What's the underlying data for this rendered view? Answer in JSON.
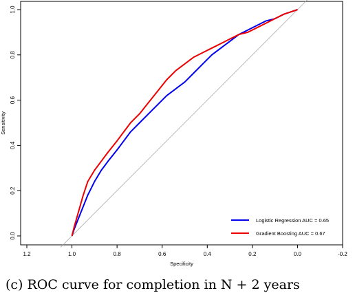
{
  "caption": "(c) ROC curve for completion in N + 2 years",
  "chart_data": {
    "type": "line",
    "title": "",
    "xlabel": "Specificity",
    "ylabel": "Sensitivity",
    "x_reversed": true,
    "xlim": [
      1.2,
      -0.2
    ],
    "ylim": [
      0.0,
      1.0
    ],
    "x_ticks": [
      1.2,
      1.0,
      0.8,
      0.6,
      0.4,
      0.2,
      0.0,
      -0.2
    ],
    "x_tick_labels": [
      "1.2",
      "1.0",
      "0.8",
      "0.6",
      "0.4",
      "0.2",
      "0.0",
      "-0.2"
    ],
    "y_ticks": [
      0.0,
      0.2,
      0.4,
      0.6,
      0.8,
      1.0
    ],
    "y_tick_labels": [
      "0.0",
      "0.2",
      "0.4",
      "0.6",
      "0.8",
      "1.0"
    ],
    "grid": false,
    "legend_position": "bottom-right",
    "reference_line": {
      "x": [
        1.0,
        0.0
      ],
      "y": [
        0.0,
        1.0
      ],
      "color": "#aaaaaa"
    },
    "series": [
      {
        "name": "Logistic Regression AUC = 0.65",
        "color": "#0000ee",
        "x": [
          1.0,
          0.99,
          0.97,
          0.95,
          0.93,
          0.9,
          0.87,
          0.84,
          0.8,
          0.77,
          0.74,
          0.7,
          0.66,
          0.62,
          0.58,
          0.54,
          0.5,
          0.46,
          0.42,
          0.38,
          0.34,
          0.3,
          0.26,
          0.22,
          0.18,
          0.14,
          0.1,
          0.06,
          0.03,
          0.0
        ],
        "y": [
          0.0,
          0.03,
          0.08,
          0.13,
          0.18,
          0.24,
          0.29,
          0.33,
          0.38,
          0.42,
          0.46,
          0.5,
          0.54,
          0.58,
          0.62,
          0.65,
          0.68,
          0.72,
          0.76,
          0.8,
          0.83,
          0.86,
          0.89,
          0.91,
          0.93,
          0.95,
          0.96,
          0.98,
          0.99,
          1.0
        ]
      },
      {
        "name": "Gradient Boosting AUC = 0.67",
        "color": "#ee0000",
        "x": [
          1.0,
          0.99,
          0.97,
          0.95,
          0.93,
          0.9,
          0.87,
          0.84,
          0.8,
          0.77,
          0.74,
          0.7,
          0.66,
          0.62,
          0.58,
          0.54,
          0.5,
          0.46,
          0.42,
          0.38,
          0.34,
          0.3,
          0.26,
          0.22,
          0.18,
          0.14,
          0.1,
          0.06,
          0.03,
          0.0
        ],
        "y": [
          0.0,
          0.04,
          0.11,
          0.18,
          0.24,
          0.29,
          0.33,
          0.37,
          0.42,
          0.46,
          0.5,
          0.54,
          0.59,
          0.64,
          0.69,
          0.73,
          0.76,
          0.79,
          0.81,
          0.83,
          0.85,
          0.87,
          0.89,
          0.9,
          0.92,
          0.94,
          0.96,
          0.98,
          0.99,
          1.0
        ]
      }
    ]
  }
}
